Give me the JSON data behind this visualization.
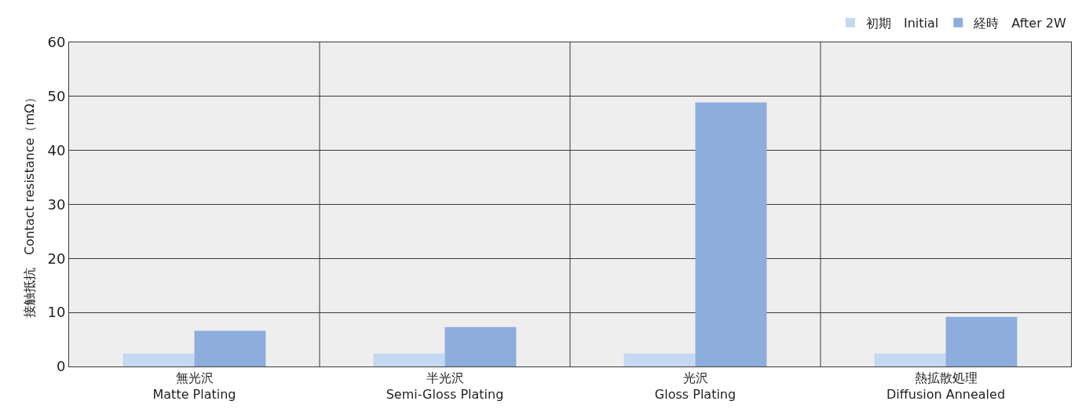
{
  "chart_data": {
    "type": "bar",
    "ylabel": "接触抵抗　Contact resistance（mΩ）",
    "categories": [
      "無光沢\nMatte Plating",
      "半光沢\nSemi-Gloss Plating",
      "光沢\nGloss Plating",
      "熱拡散処理\nDiffusion Annealed"
    ],
    "series": [
      {
        "name": "初期　Initial",
        "color": "#c3d9f1",
        "values": [
          2.4,
          2.4,
          2.4,
          2.4
        ]
      },
      {
        "name": "経時　After 2W",
        "color": "#8daddc",
        "values": [
          6.6,
          7.3,
          48.9,
          9.2
        ]
      }
    ],
    "ylim": [
      0,
      60
    ],
    "yticks": [
      0,
      10,
      20,
      30,
      40,
      50,
      60
    ],
    "grid": true,
    "legend": "top right"
  }
}
